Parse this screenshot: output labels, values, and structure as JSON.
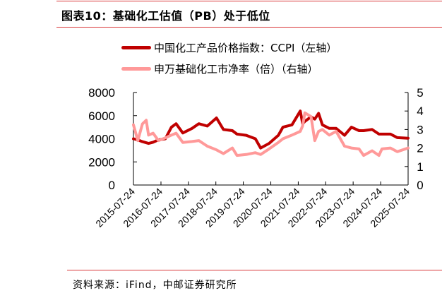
{
  "title": "图表10：基础化工估值（PB）处于低位",
  "source": "资料来源：iFind，中邮证券研究所",
  "colors": {
    "accent_rule": "#d9383a",
    "ccpi": "#c00000",
    "pb": "#ff9999"
  },
  "chart_data": {
    "type": "line",
    "title": "图表10：基础化工估值（PB）处于低位",
    "legend_placement": "top",
    "grid": false,
    "x_ticks": [
      "2015-07-24",
      "2016-07-24",
      "2017-07-24",
      "2018-07-24",
      "2019-07-24",
      "2020-07-24",
      "2021-07-24",
      "2022-07-24",
      "2023-07-24",
      "2024-07-24",
      "2025-07-24"
    ],
    "xlim": [
      "2015-07-24",
      "2025-07-24"
    ],
    "y_left": {
      "ticks": [
        "0",
        "2000",
        "4000",
        "6000",
        "8000"
      ],
      "lim": [
        0,
        8000
      ]
    },
    "y_right": {
      "ticks": [
        "0",
        "1",
        "2",
        "3",
        "4",
        "5"
      ],
      "lim": [
        0,
        5
      ]
    },
    "series": [
      {
        "name": "中国化工产品价格指数：CCPI（左轴）",
        "axis": "left",
        "color": "#c00000",
        "x": [
          "2015-07-24",
          "2015-09-20",
          "2015-11-20",
          "2016-02-10",
          "2016-04-10",
          "2016-06-20",
          "2016-09-20",
          "2016-12-10",
          "2017-02-10",
          "2017-05-10",
          "2017-09-10",
          "2017-12-10",
          "2018-04-01",
          "2018-08-01",
          "2018-11-01",
          "2019-03-01",
          "2019-05-01",
          "2019-09-01",
          "2020-01-01",
          "2020-03-10",
          "2020-07-01",
          "2020-11-01",
          "2021-01-01",
          "2021-05-01",
          "2021-08-20",
          "2021-09-20",
          "2021-10-20",
          "2022-01-10",
          "2022-03-01",
          "2022-04-20",
          "2022-06-10",
          "2022-09-10",
          "2022-12-10",
          "2023-04-01",
          "2023-07-01",
          "2023-10-10",
          "2023-12-10",
          "2024-04-01",
          "2024-07-01",
          "2024-12-01",
          "2025-03-01",
          "2025-07-24"
        ],
        "values": [
          4000,
          3900,
          3750,
          3600,
          3700,
          3900,
          4000,
          5000,
          5300,
          4500,
          4900,
          5300,
          5100,
          5800,
          4800,
          4700,
          4400,
          4300,
          4000,
          3200,
          3600,
          4300,
          5000,
          5200,
          6400,
          5300,
          5500,
          5900,
          5700,
          6200,
          5200,
          4900,
          4900,
          4300,
          5000,
          4700,
          4700,
          4800,
          4400,
          4400,
          4100,
          4050
        ]
      },
      {
        "name": "申万基础化工市净率（倍）（右轴）",
        "axis": "right",
        "color": "#ff9999",
        "x": [
          "2015-07-24",
          "2015-09-20",
          "2015-11-20",
          "2016-01-10",
          "2016-02-10",
          "2016-04-10",
          "2016-06-20",
          "2016-09-20",
          "2016-12-10",
          "2017-02-10",
          "2017-05-10",
          "2017-09-10",
          "2017-12-10",
          "2018-04-01",
          "2018-08-01",
          "2018-11-01",
          "2019-03-01",
          "2019-05-01",
          "2019-09-01",
          "2020-01-01",
          "2020-03-10",
          "2020-07-01",
          "2020-11-01",
          "2021-01-01",
          "2021-05-01",
          "2021-08-20",
          "2021-09-20",
          "2021-10-20",
          "2022-01-10",
          "2022-03-01",
          "2022-04-20",
          "2022-06-10",
          "2022-09-10",
          "2022-12-10",
          "2023-04-01",
          "2023-07-01",
          "2023-10-10",
          "2023-12-10",
          "2024-04-01",
          "2024-07-01",
          "2024-08-10",
          "2024-12-01",
          "2025-03-01",
          "2025-07-24"
        ],
        "values": [
          3.25,
          2.4,
          3.3,
          3.5,
          2.7,
          2.8,
          2.4,
          2.55,
          2.7,
          2.8,
          2.3,
          2.35,
          2.4,
          2.1,
          1.9,
          1.7,
          2.0,
          1.6,
          1.65,
          1.75,
          1.65,
          1.95,
          2.3,
          2.5,
          2.7,
          2.9,
          3.2,
          3.9,
          3.7,
          2.4,
          2.9,
          3.0,
          2.7,
          2.9,
          2.1,
          2.0,
          1.95,
          1.6,
          1.85,
          1.6,
          1.95,
          2.0,
          1.8,
          2.0
        ]
      }
    ]
  }
}
